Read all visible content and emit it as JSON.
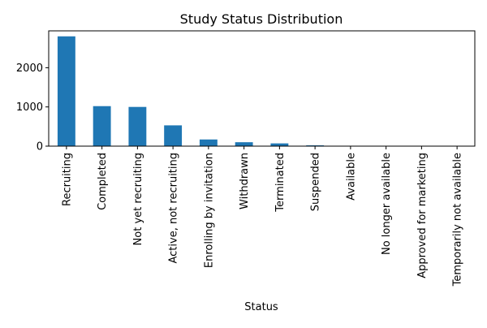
{
  "chart_data": {
    "type": "bar",
    "title": "Study Status Distribution",
    "xlabel": "Status",
    "ylabel": "",
    "categories": [
      "Recruiting",
      "Completed",
      "Not yet recruiting",
      "Active, not recruiting",
      "Enrolling by invitation",
      "Withdrawn",
      "Terminated",
      "Suspended",
      "Available",
      "No longer available",
      "Approved for marketing",
      "Temporarily not available"
    ],
    "values": [
      2800,
      1020,
      1000,
      530,
      170,
      100,
      70,
      20,
      2,
      2,
      1,
      1
    ],
    "yticks": [
      0,
      1000,
      2000
    ],
    "ylim": [
      0,
      2940
    ],
    "grid": false,
    "legend": "none",
    "colors": {
      "bar": "#1f77b4",
      "axis": "#000000",
      "background": "#ffffff"
    }
  }
}
